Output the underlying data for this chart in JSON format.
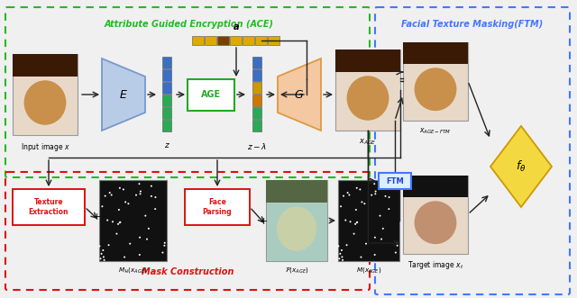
{
  "bg_color": "#f0f0f0",
  "ace_label": "Attribute Guided Encryption (ACE)",
  "ftm_label": "Facial Texture Masking(FTM)",
  "mask_label": "Mask Construction",
  "ace_color": "#22bb22",
  "ftm_color": "#4477ff",
  "mask_color": "#dd1111",
  "input_label": "Input image $x$",
  "z_label": "$z$",
  "zl_label": "$z-\\lambda$",
  "xage_label": "$x_{AGE}$",
  "xageftm_label": "$x_{AGE-FTM}$",
  "target_label": "Target image $x_t$",
  "mh_label": "$M_{\\mathcal{H}}(x_{AGE})$",
  "f_label": "$\\mathcal{F}(x_{AGE})$",
  "m_label": "$M(x_{AGE})$",
  "a_label": "$\\boldsymbol{a}$",
  "z_colors": [
    "#3a6fc4",
    "#3a6fc4",
    "#3a6fc4",
    "#2aaa55",
    "#2aaa55",
    "#2aaa55"
  ],
  "zl_colors": [
    "#3a6fc4",
    "#3a6fc4",
    "#cc9900",
    "#cc7700",
    "#2aaa55",
    "#2aaa55"
  ],
  "a_colors": [
    "#ddaa00",
    "#ddaa00",
    "#774400",
    "#ddaa00",
    "#ddaa00",
    "#ddaa00",
    "#ddaa00"
  ]
}
